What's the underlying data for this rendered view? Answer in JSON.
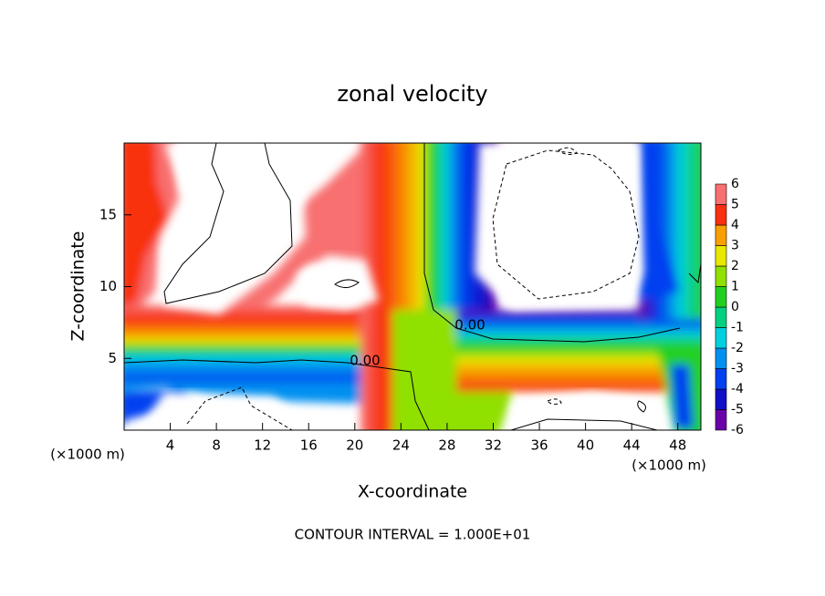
{
  "chart_data": {
    "type": "contour",
    "title": "zonal velocity",
    "x_label": "X-coordinate",
    "y_label": "Z-coordinate",
    "x_unit": "(×1000 m)",
    "y_unit": "(×1000 m)",
    "footer": "CONTOUR INTERVAL = 1.000E+01",
    "contour_labels": [
      "0.00",
      "0.00"
    ],
    "xlim": [
      0,
      50
    ],
    "xticks": [
      4,
      8,
      12,
      16,
      20,
      24,
      28,
      32,
      36,
      40,
      44,
      48
    ],
    "ylim": [
      0,
      20
    ],
    "yticks": [
      5,
      10,
      15
    ],
    "colorbar": {
      "levels": [
        -6,
        -5,
        -4,
        -3,
        -2,
        -1,
        0,
        1,
        2,
        3,
        4,
        5,
        6
      ],
      "colors": [
        "#6a00a8",
        "#1010c8",
        "#0040f0",
        "#0090f0",
        "#00d0e0",
        "#00d080",
        "#20d020",
        "#90e000",
        "#e8e800",
        "#f8a000",
        "#f83010",
        "#f87070",
        "#f8b0b0"
      ]
    }
  }
}
